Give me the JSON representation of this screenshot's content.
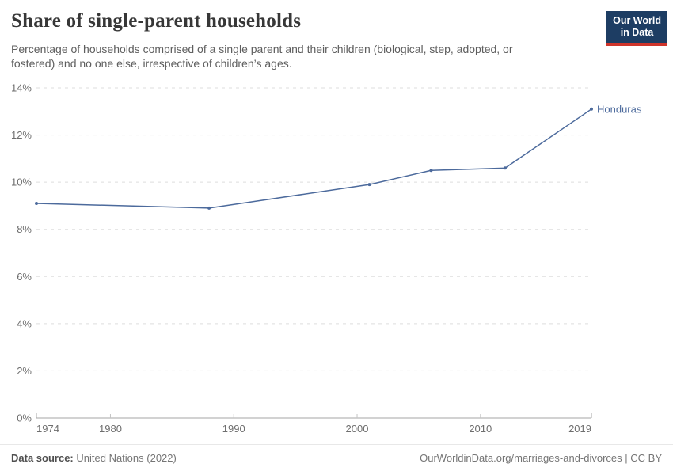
{
  "header": {
    "title": "Share of single-parent households",
    "subtitle_lines": [
      "Percentage of households comprised of a single parent and their children (biological, step, adopted, or",
      "fostered) and no one else, irrespective of children’s ages."
    ]
  },
  "logo": {
    "line1": "Our World",
    "line2": "in Data"
  },
  "chart_data": {
    "type": "line",
    "title": "Share of single-parent households",
    "xlabel": "",
    "ylabel": "",
    "xlim": [
      1974,
      2019
    ],
    "ylim": [
      0,
      14
    ],
    "grid": "horizontal-dashed",
    "legend": "label-at-line-end",
    "x_ticks": [
      {
        "value": 1974,
        "label": "1974"
      },
      {
        "value": 1980,
        "label": "1980"
      },
      {
        "value": 1990,
        "label": "1990"
      },
      {
        "value": 2000,
        "label": "2000"
      },
      {
        "value": 2010,
        "label": "2010"
      },
      {
        "value": 2019,
        "label": "2019"
      }
    ],
    "y_ticks": [
      {
        "value": 0,
        "label": "0%"
      },
      {
        "value": 2,
        "label": "2%"
      },
      {
        "value": 4,
        "label": "4%"
      },
      {
        "value": 6,
        "label": "6%"
      },
      {
        "value": 8,
        "label": "8%"
      },
      {
        "value": 10,
        "label": "10%"
      },
      {
        "value": 12,
        "label": "12%"
      },
      {
        "value": 14,
        "label": "14%"
      }
    ],
    "series": [
      {
        "name": "Honduras",
        "color": "#4c6a9c",
        "x": [
          1974,
          1988,
          2001,
          2006,
          2012,
          2019
        ],
        "values": [
          9.1,
          8.9,
          9.9,
          10.5,
          10.6,
          13.1
        ]
      }
    ]
  },
  "footer": {
    "source_label": "Data source:",
    "source_value": "United Nations (2022)",
    "right_text": "OurWorldinData.org/marriages-and-divorces | CC BY"
  },
  "colors": {
    "series": "#4c6a9c",
    "logo_bg": "#1d3d63",
    "logo_accent": "#cf342b",
    "title": "#373737",
    "subtitle": "#5e5e5e",
    "axis_text": "#6e6e6e",
    "grid": "#dedede",
    "axis_line": "#a5a5a5",
    "tick_mark": "#c4c4c4",
    "footer_text": "#757575"
  }
}
